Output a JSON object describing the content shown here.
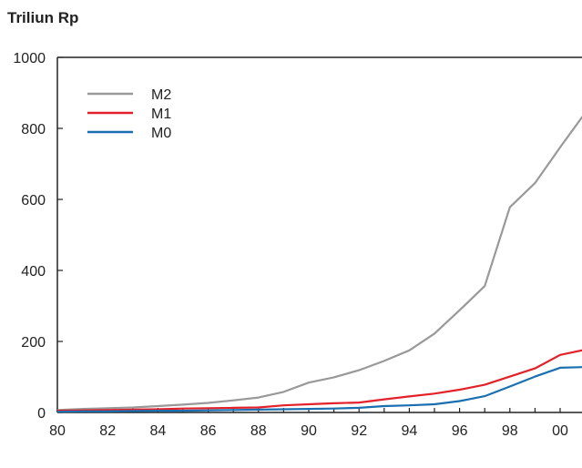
{
  "chart_data": {
    "type": "line",
    "title": "",
    "unit_label": "Triliun Rp",
    "xlabel": "",
    "ylabel": "",
    "x": [
      1980,
      1981,
      1982,
      1983,
      1984,
      1985,
      1986,
      1987,
      1988,
      1989,
      1990,
      1991,
      1992,
      1993,
      1994,
      1995,
      1996,
      1997,
      1998,
      1999,
      2000,
      2001
    ],
    "x_tick_values": [
      1980,
      1982,
      1984,
      1986,
      1988,
      1990,
      1992,
      1994,
      1996,
      1998,
      2000
    ],
    "x_tick_labels": [
      "80",
      "82",
      "84",
      "86",
      "88",
      "90",
      "92",
      "94",
      "96",
      "98",
      "00"
    ],
    "ylim": [
      0,
      1000
    ],
    "y_tick_values": [
      0,
      200,
      400,
      600,
      800,
      1000
    ],
    "y_tick_labels": [
      "0",
      "200",
      "400",
      "600",
      "800",
      "1000"
    ],
    "legend_position": "top-left",
    "grid": false,
    "series": [
      {
        "name": "M2",
        "color": "#999999",
        "values": [
          7,
          10,
          12,
          14,
          18,
          22,
          27,
          34,
          42,
          58,
          84,
          99,
          119,
          145,
          175,
          222,
          288,
          356,
          578,
          646,
          747,
          844
        ]
      },
      {
        "name": "M1",
        "color": "#e3212b",
        "values": [
          5,
          6,
          7,
          8,
          9,
          11,
          12,
          13,
          14,
          20,
          23,
          26,
          28,
          37,
          45,
          53,
          64,
          78,
          101,
          124,
          162,
          177
        ]
      },
      {
        "name": "M0",
        "color": "#1a6fb0",
        "values": [
          2,
          3,
          3,
          4,
          5,
          5,
          6,
          7,
          8,
          9,
          10,
          11,
          13,
          18,
          20,
          23,
          32,
          46,
          73,
          101,
          126,
          128
        ]
      }
    ]
  }
}
